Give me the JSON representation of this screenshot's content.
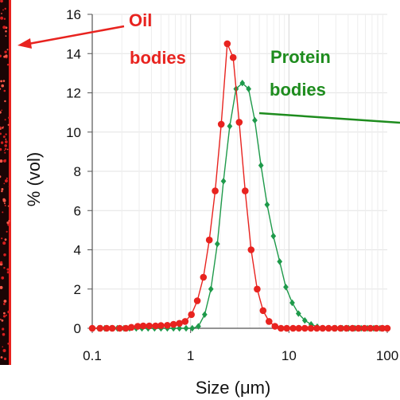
{
  "chart_data": {
    "type": "line",
    "xlabel": "Size (μm)",
    "ylabel": "% (vol)",
    "xscale": "log",
    "xlim": [
      0.1,
      100
    ],
    "ylim": [
      0,
      16
    ],
    "xticks": [
      "0.1",
      "1",
      "10",
      "100"
    ],
    "yticks": [
      "0",
      "2",
      "4",
      "6",
      "8",
      "10",
      "12",
      "14",
      "16"
    ],
    "grid": true,
    "colors": {
      "oil": "#e8231f",
      "protein": "#1e9a4a",
      "protein_text": "#1e8c1e"
    },
    "series": [
      {
        "name": "Oil bodies",
        "color": "#e8231f",
        "marker": "circle",
        "points": [
          [
            0.1,
            0
          ],
          [
            0.12,
            0
          ],
          [
            0.14,
            0
          ],
          [
            0.16,
            0
          ],
          [
            0.19,
            0
          ],
          [
            0.22,
            0
          ],
          [
            0.25,
            0.05
          ],
          [
            0.29,
            0.1
          ],
          [
            0.33,
            0.12
          ],
          [
            0.38,
            0.12
          ],
          [
            0.44,
            0.12
          ],
          [
            0.5,
            0.14
          ],
          [
            0.58,
            0.15
          ],
          [
            0.67,
            0.2
          ],
          [
            0.77,
            0.25
          ],
          [
            0.88,
            0.35
          ],
          [
            1.02,
            0.7
          ],
          [
            1.17,
            1.4
          ],
          [
            1.35,
            2.6
          ],
          [
            1.55,
            4.5
          ],
          [
            1.78,
            7.0
          ],
          [
            2.05,
            10.4
          ],
          [
            2.36,
            14.5
          ],
          [
            2.71,
            13.8
          ],
          [
            3.12,
            10.5
          ],
          [
            3.59,
            7.0
          ],
          [
            4.13,
            4.0
          ],
          [
            4.75,
            2.0
          ],
          [
            5.46,
            0.9
          ],
          [
            6.28,
            0.35
          ],
          [
            7.22,
            0.1
          ],
          [
            8.3,
            0
          ],
          [
            9.5,
            0
          ],
          [
            11,
            0
          ],
          [
            12.6,
            0
          ],
          [
            14.5,
            0
          ],
          [
            16.7,
            0
          ],
          [
            19.2,
            0
          ],
          [
            22,
            0
          ],
          [
            25.3,
            0
          ],
          [
            29.1,
            0
          ],
          [
            33.5,
            0
          ],
          [
            38.5,
            0
          ],
          [
            44.3,
            0
          ],
          [
            50.9,
            0
          ],
          [
            58.6,
            0
          ],
          [
            67.4,
            0
          ],
          [
            77.5,
            0
          ],
          [
            89.1,
            0
          ],
          [
            100,
            0
          ]
        ]
      },
      {
        "name": "Protein bodies",
        "color": "#1e9a4a",
        "marker": "diamond",
        "points": [
          [
            0.1,
            0
          ],
          [
            0.116,
            0
          ],
          [
            0.134,
            0
          ],
          [
            0.155,
            0
          ],
          [
            0.18,
            0
          ],
          [
            0.21,
            0
          ],
          [
            0.24,
            0
          ],
          [
            0.28,
            0
          ],
          [
            0.32,
            0
          ],
          [
            0.37,
            0
          ],
          [
            0.43,
            0
          ],
          [
            0.5,
            0
          ],
          [
            0.58,
            0
          ],
          [
            0.67,
            0
          ],
          [
            0.77,
            0
          ],
          [
            0.9,
            0
          ],
          [
            1.04,
            0
          ],
          [
            1.2,
            0.1
          ],
          [
            1.39,
            0.7
          ],
          [
            1.61,
            2.0
          ],
          [
            1.87,
            4.3
          ],
          [
            2.16,
            7.5
          ],
          [
            2.5,
            10.3
          ],
          [
            2.9,
            12.2
          ],
          [
            3.36,
            12.5
          ],
          [
            3.89,
            12.2
          ],
          [
            4.5,
            10.6
          ],
          [
            5.2,
            8.3
          ],
          [
            6.0,
            6.3
          ],
          [
            6.95,
            4.7
          ],
          [
            8.05,
            3.4
          ],
          [
            9.3,
            2.1
          ],
          [
            10.8,
            1.3
          ],
          [
            12.5,
            0.75
          ],
          [
            14.5,
            0.4
          ],
          [
            16.8,
            0.2
          ],
          [
            19.4,
            0.08
          ],
          [
            22.5,
            0
          ],
          [
            26,
            0
          ],
          [
            30.2,
            0
          ],
          [
            35,
            0
          ],
          [
            40.5,
            0
          ],
          [
            46.9,
            0
          ],
          [
            54.3,
            0
          ],
          [
            62.9,
            0
          ],
          [
            72.8,
            0
          ],
          [
            84.3,
            0
          ],
          [
            100,
            0
          ]
        ]
      }
    ],
    "annotations": [
      {
        "lines": [
          "Oil",
          "bodies"
        ],
        "color": "#e8231f"
      },
      {
        "lines": [
          "Protein",
          "bodies"
        ],
        "color": "#1e8c1e"
      }
    ]
  }
}
